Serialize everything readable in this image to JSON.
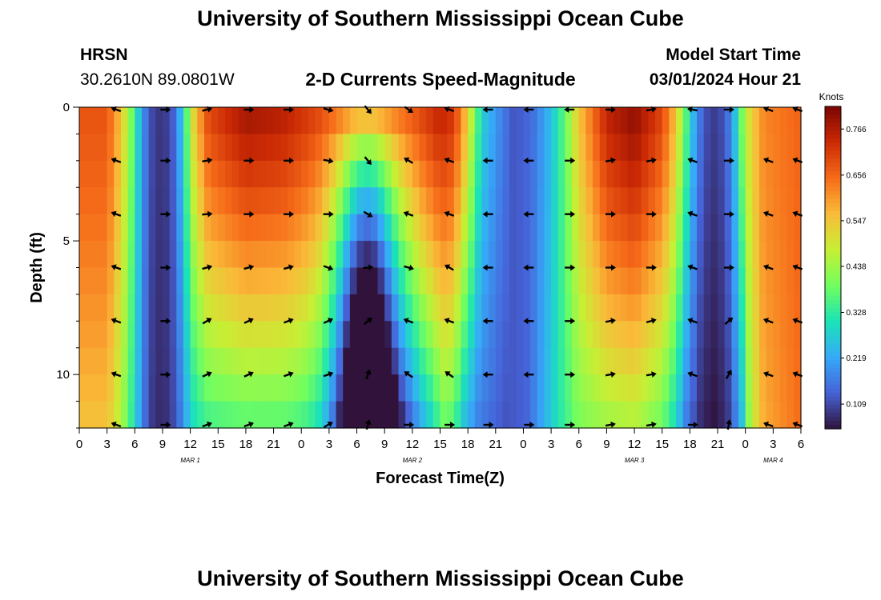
{
  "header": {
    "title": "University of Southern Mississippi Ocean Cube",
    "station": "HRSN",
    "coords": "30.2610N  89.0801W",
    "chart_subtitle": "2-D Currents Speed-Magnitude",
    "model_start_label": "Model Start Time",
    "model_start_value": "03/01/2024 Hour 21"
  },
  "footer": {
    "title": "University of Southern Mississippi Ocean Cube"
  },
  "colors": {
    "arrow": "#000000",
    "colormap": [
      "#30123b",
      "#4662d7",
      "#36aaf9",
      "#1ae4b6",
      "#72fe5e",
      "#c7ef34",
      "#fabb39",
      "#f66b19",
      "#cb2a04",
      "#7a0403"
    ]
  },
  "chart_data": {
    "type": "heatmap",
    "title": "2-D Currents Speed-Magnitude",
    "xlabel": "Forecast Time(Z)",
    "ylabel": "Depth (ft)",
    "x_range_hours": [
      0,
      78
    ],
    "y_range_ft": [
      0,
      12
    ],
    "x_ticks": [
      "0",
      "3",
      "6",
      "9",
      "12",
      "15",
      "18",
      "21",
      "0",
      "3",
      "6",
      "9",
      "12",
      "15",
      "18",
      "21",
      "0",
      "3",
      "6",
      "9",
      "12",
      "15",
      "18",
      "21",
      "0",
      "3",
      "6"
    ],
    "y_ticks": [
      "0",
      "5",
      "10"
    ],
    "date_labels": [
      {
        "label": "MAR 1",
        "hour": 12
      },
      {
        "label": "MAR 2",
        "hour": 36
      },
      {
        "label": "MAR 3",
        "hour": 60
      },
      {
        "label": "MAR 4",
        "hour": 75
      }
    ],
    "colorbar": {
      "title": "Knots",
      "min": 0.05,
      "max": 0.82,
      "ticks": [
        "0.766",
        "0.656",
        "0.547",
        "0.438",
        "0.328",
        "0.219",
        "0.109"
      ],
      "tick_values": [
        0.766,
        0.656,
        0.547,
        0.438,
        0.328,
        0.219,
        0.109
      ]
    },
    "depths_ft": [
      0,
      2,
      4,
      6,
      8,
      10,
      12
    ],
    "surface_speed_knots": [
      [
        0,
        0.68
      ],
      [
        3,
        0.68
      ],
      [
        4.5,
        0.55
      ],
      [
        5.5,
        0.42
      ],
      [
        6.5,
        0.25
      ],
      [
        7.5,
        0.12
      ],
      [
        9,
        0.08
      ],
      [
        10.5,
        0.15
      ],
      [
        11.5,
        0.35
      ],
      [
        12.5,
        0.55
      ],
      [
        14,
        0.7
      ],
      [
        18,
        0.78
      ],
      [
        22,
        0.76
      ],
      [
        26,
        0.7
      ],
      [
        30,
        0.62
      ],
      [
        32,
        0.62
      ],
      [
        36,
        0.68
      ],
      [
        39,
        0.75
      ],
      [
        40.5,
        0.72
      ],
      [
        41.5,
        0.6
      ],
      [
        42.5,
        0.45
      ],
      [
        43.5,
        0.28
      ],
      [
        45,
        0.2
      ],
      [
        47,
        0.12
      ],
      [
        49,
        0.15
      ],
      [
        51,
        0.25
      ],
      [
        52.5,
        0.38
      ],
      [
        54,
        0.55
      ],
      [
        57,
        0.75
      ],
      [
        60,
        0.8
      ],
      [
        63,
        0.7
      ],
      [
        64.5,
        0.55
      ],
      [
        65.5,
        0.38
      ],
      [
        66.5,
        0.22
      ],
      [
        67.5,
        0.12
      ],
      [
        69,
        0.09
      ],
      [
        70.5,
        0.18
      ],
      [
        71.5,
        0.38
      ],
      [
        72.5,
        0.52
      ],
      [
        74,
        0.62
      ],
      [
        78,
        0.66
      ]
    ],
    "bottom_speed_knots": [
      [
        0,
        0.55
      ],
      [
        3,
        0.55
      ],
      [
        4.5,
        0.45
      ],
      [
        5.5,
        0.35
      ],
      [
        6.5,
        0.22
      ],
      [
        7.5,
        0.1
      ],
      [
        9,
        0.07
      ],
      [
        10.5,
        0.12
      ],
      [
        11.5,
        0.22
      ],
      [
        12.5,
        0.3
      ],
      [
        14,
        0.34
      ],
      [
        18,
        0.36
      ],
      [
        22,
        0.36
      ],
      [
        26,
        0.34
      ],
      [
        28,
        0.3
      ],
      [
        30,
        0.22
      ],
      [
        32,
        0.18
      ],
      [
        36,
        0.2
      ],
      [
        38,
        0.28
      ],
      [
        39.5,
        0.38
      ],
      [
        40.5,
        0.35
      ],
      [
        41.5,
        0.25
      ],
      [
        43,
        0.17
      ],
      [
        46,
        0.12
      ],
      [
        48.5,
        0.14
      ],
      [
        50,
        0.22
      ],
      [
        52,
        0.32
      ],
      [
        54,
        0.4
      ],
      [
        57,
        0.43
      ],
      [
        60,
        0.45
      ],
      [
        63,
        0.38
      ],
      [
        64.5,
        0.28
      ],
      [
        65.5,
        0.17
      ],
      [
        67,
        0.08
      ],
      [
        68.5,
        0.05
      ],
      [
        70,
        0.08
      ],
      [
        71.5,
        0.22
      ],
      [
        72.5,
        0.45
      ],
      [
        74,
        0.58
      ],
      [
        78,
        0.65
      ]
    ],
    "midwater_dip": {
      "center_hour": 31,
      "width_hours": 3.5,
      "depth_scale_ft": 4,
      "reduction_knots": 0.5
    },
    "vector_hours": [
      4,
      9.3,
      13.8,
      18.3,
      22.6,
      26.9,
      31.2,
      35.6,
      40,
      44.2,
      48.6,
      53,
      57.4,
      61.8,
      66.3,
      70.2,
      74.5,
      78
    ],
    "vector_angles_deg": [
      [
        200,
        0,
        -15,
        0,
        0,
        15,
        50,
        35,
        200,
        180,
        180,
        180,
        0,
        -10,
        190,
        0,
        200,
        200
      ],
      [
        200,
        0,
        -10,
        0,
        0,
        10,
        50,
        210,
        200,
        180,
        180,
        0,
        -10,
        -10,
        200,
        0,
        200,
        200
      ],
      [
        200,
        0,
        -5,
        0,
        0,
        0,
        30,
        200,
        200,
        180,
        180,
        0,
        0,
        0,
        200,
        0,
        200,
        200
      ],
      [
        200,
        0,
        -15,
        -15,
        -15,
        20,
        -5,
        15,
        210,
        180,
        180,
        0,
        0,
        0,
        200,
        0,
        200,
        200
      ],
      [
        200,
        0,
        -30,
        -25,
        -20,
        -25,
        -40,
        200,
        200,
        180,
        180,
        0,
        -10,
        -15,
        200,
        -40,
        200,
        200
      ],
      [
        200,
        0,
        -25,
        -25,
        -20,
        -20,
        -70,
        215,
        215,
        180,
        180,
        0,
        -10,
        -10,
        200,
        -60,
        200,
        200
      ],
      [
        200,
        0,
        -20,
        -20,
        -20,
        -30,
        -75,
        0,
        0,
        0,
        0,
        0,
        -10,
        -10,
        0,
        -80,
        200,
        200
      ]
    ]
  }
}
